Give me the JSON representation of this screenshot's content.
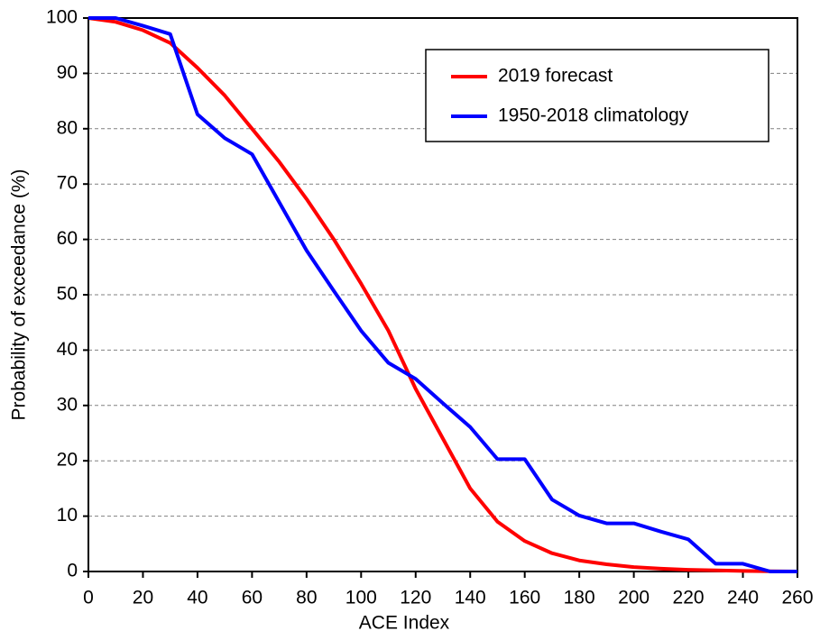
{
  "chart_data": {
    "type": "line",
    "x_label": "ACE Index",
    "y_label": "Probability of exceedance (%)",
    "x": [
      0,
      10,
      20,
      30,
      40,
      50,
      60,
      70,
      80,
      90,
      100,
      110,
      120,
      130,
      140,
      150,
      160,
      170,
      180,
      190,
      200,
      210,
      220,
      230,
      240,
      250,
      260
    ],
    "series": [
      {
        "name": "2019 forecast",
        "color": "#ff0000",
        "values": [
          100,
          99.3,
          97.8,
          95.5,
          91,
          86,
          80,
          74,
          67.3,
          60,
          52,
          43.5,
          33,
          24,
          15,
          9,
          5.5,
          3.3,
          2,
          1.3,
          0.8,
          0.5,
          0.3,
          0.2,
          0.1,
          0.05,
          0
        ]
      },
      {
        "name": "1950-2018 climatology",
        "color": "#0000ff",
        "values": [
          100,
          100,
          98.6,
          97.1,
          82.6,
          78.3,
          75.4,
          66.7,
          58,
          50.7,
          43.5,
          37.7,
          34.8,
          30.4,
          26.1,
          20.3,
          20.3,
          13,
          10.1,
          8.7,
          8.7,
          7.2,
          5.8,
          1.4,
          1.4,
          0,
          0
        ]
      }
    ],
    "xlim": [
      0,
      260
    ],
    "ylim": [
      0,
      100
    ],
    "xticks": [
      0,
      20,
      40,
      60,
      80,
      100,
      120,
      140,
      160,
      180,
      200,
      220,
      240,
      260
    ],
    "yticks": [
      0,
      10,
      20,
      30,
      40,
      50,
      60,
      70,
      80,
      90,
      100
    ],
    "grid": true,
    "legend": "upper-right"
  }
}
